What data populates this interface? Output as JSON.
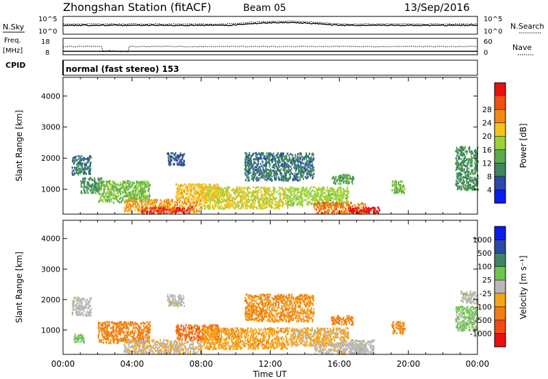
{
  "header": {
    "title": "Zhongshan Station (fitACF)",
    "beam": "Beam 05",
    "date": "13/Sep/2016"
  },
  "noise_panel": {
    "left_label": "N.Sky",
    "left_ticks": [
      "10^5",
      "10^0"
    ],
    "right_label": "N.Search",
    "right_ticks": [
      "10^5",
      "10^0"
    ]
  },
  "freq_panel": {
    "left_label_line1": "Freq.",
    "left_label_line2": "[MHz]",
    "left_ticks": [
      "18",
      "8"
    ],
    "right_label": "Nave",
    "right_ticks": [
      "60",
      "0"
    ]
  },
  "cpid": {
    "label": "CPID",
    "text": "normal (fast stereo) 153"
  },
  "colors": {
    "power_scale": [
      "#0a1cf0",
      "#2b4aa6",
      "#3e8560",
      "#5aab4a",
      "#9bd23a",
      "#f5c21e",
      "#f08a14",
      "#f05014",
      "#e81010"
    ],
    "velocity_scale": [
      "#e81010",
      "#f04a12",
      "#f07e14",
      "#f5a41e",
      "#b8b8b8",
      "#6cc64a",
      "#3e8560",
      "#2b4aa6",
      "#0a1cf0"
    ]
  },
  "chart_data": [
    {
      "type": "heatmap",
      "name": "power",
      "ylabel": "Slant Range [km]",
      "yticks": [
        1000,
        2000,
        3000,
        4000
      ],
      "ylim": [
        200,
        4600
      ],
      "xlim": [
        0,
        24
      ],
      "colorbar": {
        "label": "Power [dB]",
        "ticks": [
          "4",
          "8",
          "12",
          "16",
          "20",
          "24",
          "28"
        ],
        "range": [
          0,
          32
        ]
      },
      "regions": [
        {
          "t0": 0.5,
          "t1": 1.6,
          "r0": 1500,
          "r1": 2100,
          "v": 8
        },
        {
          "t0": 1.0,
          "t1": 2.2,
          "r0": 900,
          "r1": 1400,
          "v": 10
        },
        {
          "t0": 2.0,
          "t1": 5.0,
          "r0": 600,
          "r1": 1300,
          "v": 14
        },
        {
          "t0": 3.5,
          "t1": 8.0,
          "r0": 300,
          "r1": 700,
          "v": 22
        },
        {
          "t0": 4.5,
          "t1": 7.5,
          "r0": 250,
          "r1": 450,
          "v": 28
        },
        {
          "t0": 6.5,
          "t1": 9.0,
          "r0": 700,
          "r1": 1200,
          "v": 20
        },
        {
          "t0": 8.0,
          "t1": 13.0,
          "r0": 400,
          "r1": 1100,
          "v": 18
        },
        {
          "t0": 13.0,
          "t1": 16.5,
          "r0": 500,
          "r1": 1100,
          "v": 16
        },
        {
          "t0": 14.5,
          "t1": 17.5,
          "r0": 250,
          "r1": 600,
          "v": 24
        },
        {
          "t0": 16.5,
          "t1": 18.3,
          "r0": 250,
          "r1": 450,
          "v": 30
        },
        {
          "t0": 6.0,
          "t1": 7.0,
          "r0": 1800,
          "r1": 2200,
          "v": 6
        },
        {
          "t0": 10.5,
          "t1": 14.5,
          "r0": 1300,
          "r1": 2200,
          "v": 8
        },
        {
          "t0": 15.5,
          "t1": 16.8,
          "r0": 1200,
          "r1": 1500,
          "v": 12
        },
        {
          "t0": 19.0,
          "t1": 19.8,
          "r0": 900,
          "r1": 1300,
          "v": 14
        },
        {
          "t0": 22.7,
          "t1": 24.0,
          "r0": 1000,
          "r1": 2400,
          "v": 10
        }
      ]
    },
    {
      "type": "heatmap",
      "name": "velocity",
      "ylabel": "Slant Range [km]",
      "xlabel": "Time UT",
      "xticks": [
        "00:00",
        "04:00",
        "08:00",
        "12:00",
        "16:00",
        "20:00",
        "00:00"
      ],
      "yticks": [
        1000,
        2000,
        3000,
        4000
      ],
      "ylim": [
        200,
        4600
      ],
      "xlim": [
        0,
        24
      ],
      "colorbar": {
        "label": "Velocity [m s⁻¹]",
        "ticks": [
          "-1000",
          "-500",
          "-100",
          "-25",
          "25",
          "100",
          "500",
          "1000"
        ],
        "range": [
          -1200,
          1200
        ]
      },
      "regions": [
        {
          "t0": 0.5,
          "t1": 1.6,
          "r0": 1500,
          "r1": 2100,
          "v": 0
        },
        {
          "t0": 0.6,
          "t1": 1.2,
          "r0": 600,
          "r1": 900,
          "v": 200
        },
        {
          "t0": 2.0,
          "t1": 5.0,
          "r0": 600,
          "r1": 1300,
          "v": -500
        },
        {
          "t0": 3.5,
          "t1": 8.0,
          "r0": 250,
          "r1": 700,
          "v": -100
        },
        {
          "t0": 6.5,
          "t1": 9.0,
          "r0": 700,
          "r1": 1200,
          "v": -600
        },
        {
          "t0": 8.0,
          "t1": 13.0,
          "r0": 400,
          "r1": 1100,
          "v": -300
        },
        {
          "t0": 13.0,
          "t1": 16.5,
          "r0": 500,
          "r1": 1100,
          "v": -200
        },
        {
          "t0": 14.5,
          "t1": 17.5,
          "r0": 250,
          "r1": 600,
          "v": -60
        },
        {
          "t0": 16.5,
          "t1": 18.0,
          "r0": 250,
          "r1": 700,
          "v": 0
        },
        {
          "t0": 6.0,
          "t1": 7.0,
          "r0": 1800,
          "r1": 2200,
          "v": 0
        },
        {
          "t0": 10.5,
          "t1": 14.5,
          "r0": 1300,
          "r1": 2200,
          "v": -400
        },
        {
          "t0": 15.5,
          "t1": 16.8,
          "r0": 1200,
          "r1": 1500,
          "v": -500
        },
        {
          "t0": 19.0,
          "t1": 19.8,
          "r0": 900,
          "r1": 1300,
          "v": -400
        },
        {
          "t0": 22.7,
          "t1": 24.0,
          "r0": 1000,
          "r1": 1800,
          "v": 200
        },
        {
          "t0": 23.0,
          "t1": 24.0,
          "r0": 1900,
          "r1": 2300,
          "v": 0
        }
      ]
    }
  ]
}
